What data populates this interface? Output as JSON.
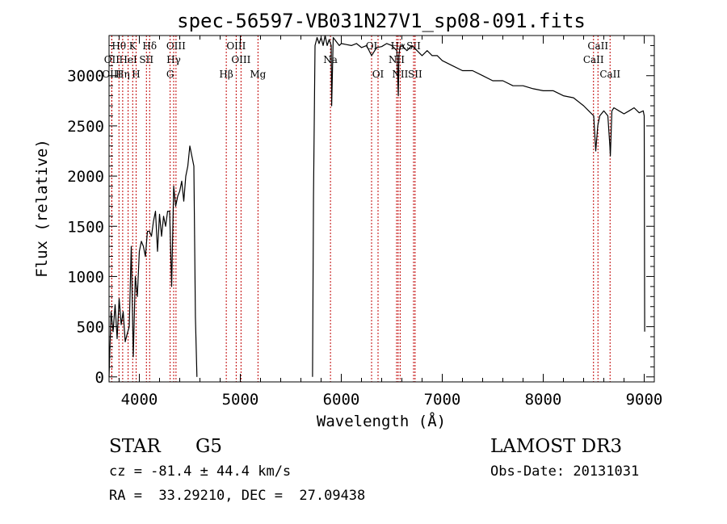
{
  "chart_data": {
    "type": "line",
    "title": "spec-56597-VB031N27V1_sp08-091.fits",
    "xlabel": "Wavelength (Å)",
    "ylabel": "Flux (relative)",
    "xlim": [
      3700,
      9100
    ],
    "ylim": [
      -50,
      3400
    ],
    "xticks": [
      4000,
      5000,
      6000,
      7000,
      8000,
      9000
    ],
    "yticks": [
      0,
      500,
      1000,
      1500,
      2000,
      2500,
      3000
    ],
    "series": [
      {
        "name": "flux",
        "segments": [
          {
            "x": [
              3700,
              3720,
              3740,
              3760,
              3780,
              3800,
              3820,
              3840,
              3860,
              3880,
              3900,
              3920,
              3940,
              3960,
              3980,
              4000,
              4020,
              4040,
              4060,
              4080,
              4100,
              4120,
              4140,
              4160,
              4180,
              4200,
              4220,
              4240,
              4260,
              4280,
              4300,
              4320,
              4340,
              4360,
              4380,
              4400,
              4420,
              4440,
              4460,
              4480,
              4500,
              4520,
              4540,
              4555,
              4570
            ],
            "y": [
              0,
              650,
              450,
              720,
              380,
              780,
              520,
              650,
              350,
              430,
              500,
              1300,
              200,
              1000,
              800,
              1250,
              1350,
              1300,
              1200,
              1450,
              1450,
              1400,
              1550,
              1650,
              1250,
              1620,
              1400,
              1600,
              1500,
              1650,
              1650,
              900,
              1900,
              1700,
              1800,
              1850,
              1950,
              1750,
              2000,
              2100,
              2300,
              2200,
              2100,
              600,
              0
            ]
          },
          {
            "x": [
              5715,
              5725,
              5740,
              5760,
              5780,
              5800,
              5820,
              5840,
              5860,
              5880,
              5900,
              5905,
              5920,
              5950,
              5980,
              6000,
              6050,
              6100,
              6150,
              6200,
              6250,
              6300,
              6350,
              6400,
              6450,
              6500,
              6550,
              6565,
              6570,
              6580,
              6600,
              6650,
              6700,
              6750,
              6800,
              6850,
              6900,
              6950,
              7000,
              7100,
              7200,
              7300,
              7400,
              7500,
              7600,
              7700,
              7800,
              7900,
              8000,
              8100,
              8200,
              8300,
              8400,
              8450,
              8500,
              8520,
              8540,
              8560,
              8600,
              8640,
              8660,
              8665,
              8680,
              8700,
              8750,
              8800,
              8850,
              8900,
              8950,
              8990,
              9000,
              9005
            ],
            "y": [
              0,
              1800,
              3300,
              3380,
              3320,
              3380,
              3300,
              3400,
              3300,
              3360,
              3300,
              2700,
              3380,
              3340,
              3300,
              3320,
              3310,
              3300,
              3320,
              3280,
              3300,
              3200,
              3280,
              3290,
              3320,
              3300,
              3250,
              2800,
              3200,
              3280,
              3300,
              3250,
              3300,
              3250,
              3200,
              3250,
              3200,
              3200,
              3150,
              3100,
              3050,
              3050,
              3000,
              2950,
              2950,
              2900,
              2900,
              2870,
              2850,
              2850,
              2800,
              2780,
              2700,
              2650,
              2600,
              2250,
              2500,
              2600,
              2650,
              2600,
              2300,
              2200,
              2650,
              2680,
              2650,
              2620,
              2650,
              2680,
              2630,
              2650,
              2600,
              450
            ]
          }
        ]
      }
    ],
    "spectral_lines": [
      {
        "label": "Hθ",
        "wavelength": 3798,
        "row": 1
      },
      {
        "label": "OII",
        "wavelength": 3727,
        "row": 2
      },
      {
        "label": "OIII",
        "wavelength": 3727,
        "row": 3
      },
      {
        "label": "K",
        "wavelength": 3934,
        "row": 1
      },
      {
        "label": "HeI",
        "wavelength": 3889,
        "row": 2
      },
      {
        "label": "Hη",
        "wavelength": 3835,
        "row": 3
      },
      {
        "label": "H",
        "wavelength": 3968,
        "row": 3
      },
      {
        "label": "SII",
        "wavelength": 4070,
        "row": 2
      },
      {
        "label": "Hδ",
        "wavelength": 4102,
        "row": 1
      },
      {
        "label": "OIII",
        "wavelength": 4363,
        "row": 1
      },
      {
        "label": "Hγ",
        "wavelength": 4340,
        "row": 2
      },
      {
        "label": "G",
        "wavelength": 4305,
        "row": 3
      },
      {
        "label": "OIII",
        "wavelength": 4959,
        "row": 1
      },
      {
        "label": "OIII",
        "wavelength": 5007,
        "row": 2
      },
      {
        "label": "Hβ",
        "wavelength": 4861,
        "row": 3
      },
      {
        "label": "Mg",
        "wavelength": 5175,
        "row": 3
      },
      {
        "label": "Na",
        "wavelength": 5893,
        "row": 2
      },
      {
        "label": "OI",
        "wavelength": 6300,
        "row": 1
      },
      {
        "label": "OI",
        "wavelength": 6364,
        "row": 3
      },
      {
        "label": "Hα",
        "wavelength": 6563,
        "row": 1
      },
      {
        "label": "SII",
        "wavelength": 6716,
        "row": 1
      },
      {
        "label": "NII",
        "wavelength": 6548,
        "row": 2
      },
      {
        "label": "NII",
        "wavelength": 6583,
        "row": 3
      },
      {
        "label": "SII",
        "wavelength": 6731,
        "row": 3
      },
      {
        "label": "CaII",
        "wavelength": 8542,
        "row": 1
      },
      {
        "label": "CaII",
        "wavelength": 8498,
        "row": 2
      },
      {
        "label": "CaII",
        "wavelength": 8662,
        "row": 3
      }
    ]
  },
  "footer": {
    "class_label": "STAR",
    "subclass": "G5",
    "survey": "LAMOST DR3",
    "cz": "cz = -81.4 ± 44.4 km/s",
    "obs_date": "Obs-Date: 20131031",
    "coords": "RA =  33.29210, DEC =  27.09438"
  }
}
